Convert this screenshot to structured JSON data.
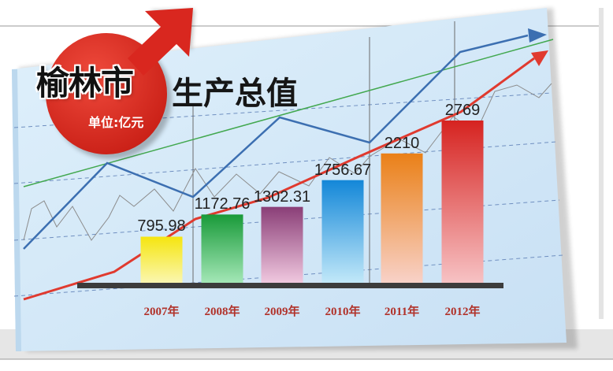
{
  "title_main": "榆林市",
  "title_secondary": "生产总值",
  "unit_label": "单位:亿元",
  "colors": {
    "panel": "#cfe6f7",
    "panel_dark": "#bdd9ef",
    "arrow_red": "#e03a2f",
    "arrow_blue": "#3c6fb1",
    "green_line": "#42a84f",
    "base_bar": "#3c3c3c",
    "badge_red": "#d9271f"
  },
  "chart_data": {
    "type": "bar",
    "categories": [
      "2007年",
      "2008年",
      "2009年",
      "2010年",
      "2011年",
      "2012年"
    ],
    "values": [
      795.98,
      1172.76,
      1302.31,
      1756.67,
      2210,
      2769
    ],
    "value_labels": [
      "795.98",
      "1172.76",
      "1302.31",
      "1756.67",
      "2210",
      "2769"
    ],
    "bar_colors": [
      [
        "#fbf7b3",
        "#f5e50f"
      ],
      [
        "#a5e8b8",
        "#199a39"
      ],
      [
        "#f1c9e0",
        "#8a3e77"
      ],
      [
        "#c3e9f9",
        "#1387d8"
      ],
      [
        "#f8d2c9",
        "#ea8017"
      ],
      [
        "#f7c3c5",
        "#d62320"
      ]
    ],
    "title": "榆林市生产总值",
    "ylabel": "单位:亿元",
    "xlabel": "",
    "ylim": [
      0,
      2800
    ],
    "grid": false,
    "legend": "none"
  }
}
